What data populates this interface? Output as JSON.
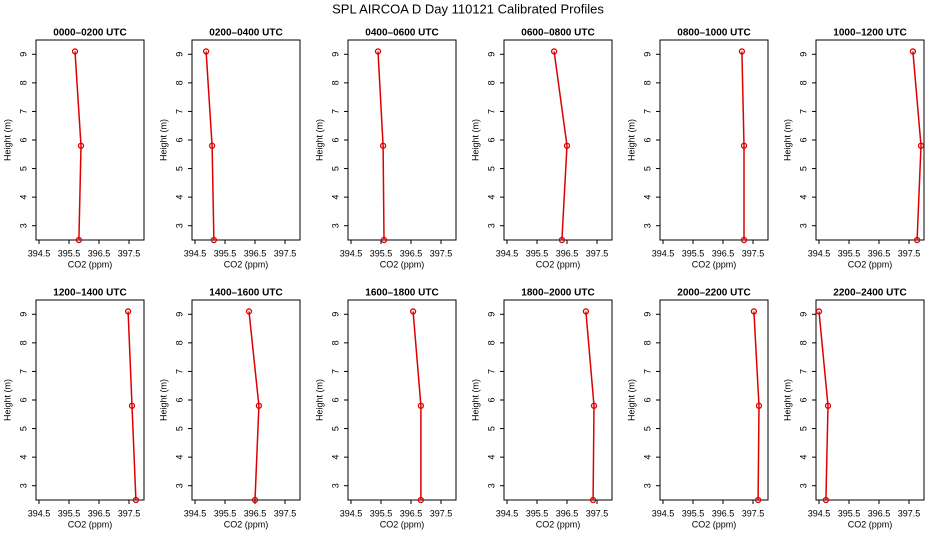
{
  "title": "SPL AIRCOA D  Day 110121  Calibrated Profiles",
  "chart_data": [
    {
      "type": "line",
      "title": "0000–0200 UTC",
      "x_label": "CO2 (ppm)",
      "y_label": "Height (m)",
      "color": "#dd0000",
      "x": [
        395.7,
        395.9,
        395.83
      ],
      "values": [
        9.1,
        5.8,
        2.5
      ],
      "xlim": [
        394.4,
        398.0
      ],
      "ylim": [
        2.5,
        9.5
      ],
      "xticks": [
        394.5,
        395.5,
        396.5,
        397.5
      ],
      "yticks": [
        3,
        4,
        5,
        6,
        7,
        8,
        9
      ]
    },
    {
      "type": "line",
      "title": "0200–0400 UTC",
      "x_label": "CO2 (ppm)",
      "y_label": "Height (m)",
      "color": "#dd0000",
      "x": [
        394.87,
        395.07,
        395.13
      ],
      "values": [
        9.1,
        5.8,
        2.5
      ],
      "xlim": [
        394.4,
        398.0
      ],
      "ylim": [
        2.5,
        9.5
      ],
      "xticks": [
        394.5,
        395.5,
        396.5,
        397.5
      ],
      "yticks": [
        3,
        4,
        5,
        6,
        7,
        8,
        9
      ]
    },
    {
      "type": "line",
      "title": "0400–0600 UTC",
      "x_label": "CO2 (ppm)",
      "y_label": "Height (m)",
      "color": "#dd0000",
      "x": [
        395.4,
        395.57,
        395.6
      ],
      "values": [
        9.1,
        5.8,
        2.5
      ],
      "xlim": [
        394.4,
        398.0
      ],
      "ylim": [
        2.5,
        9.5
      ],
      "xticks": [
        394.5,
        395.5,
        396.5,
        397.5
      ],
      "yticks": [
        3,
        4,
        5,
        6,
        7,
        8,
        9
      ]
    },
    {
      "type": "line",
      "title": "0600–0800 UTC",
      "x_label": "CO2 (ppm)",
      "y_label": "Height (m)",
      "color": "#dd0000",
      "x": [
        396.07,
        396.5,
        396.33
      ],
      "values": [
        9.1,
        5.8,
        2.5
      ],
      "xlim": [
        394.4,
        398.0
      ],
      "ylim": [
        2.5,
        9.5
      ],
      "xticks": [
        394.5,
        395.5,
        396.5,
        397.5
      ],
      "yticks": [
        3,
        4,
        5,
        6,
        7,
        8,
        9
      ]
    },
    {
      "type": "line",
      "title": "0800–1000 UTC",
      "x_label": "CO2 (ppm)",
      "y_label": "Height (m)",
      "color": "#dd0000",
      "x": [
        397.13,
        397.2,
        397.2
      ],
      "values": [
        9.1,
        5.8,
        2.5
      ],
      "xlim": [
        394.4,
        398.0
      ],
      "ylim": [
        2.5,
        9.5
      ],
      "xticks": [
        394.5,
        395.5,
        396.5,
        397.5
      ],
      "yticks": [
        3,
        4,
        5,
        6,
        7,
        8,
        9
      ]
    },
    {
      "type": "line",
      "title": "1000–1200 UTC",
      "x_label": "CO2 (ppm)",
      "y_label": "Height (m)",
      "color": "#dd0000",
      "x": [
        397.63,
        397.9,
        397.77
      ],
      "values": [
        9.1,
        5.8,
        2.5
      ],
      "xlim": [
        394.4,
        398.0
      ],
      "ylim": [
        2.5,
        9.5
      ],
      "xticks": [
        394.5,
        395.5,
        396.5,
        397.5
      ],
      "yticks": [
        3,
        4,
        5,
        6,
        7,
        8,
        9
      ]
    },
    {
      "type": "line",
      "title": "1200–1400 UTC",
      "x_label": "CO2 (ppm)",
      "y_label": "Height (m)",
      "color": "#dd0000",
      "x": [
        397.47,
        397.6,
        397.73
      ],
      "values": [
        9.1,
        5.8,
        2.5
      ],
      "xlim": [
        394.4,
        398.0
      ],
      "ylim": [
        2.5,
        9.5
      ],
      "xticks": [
        394.5,
        395.5,
        396.5,
        397.5
      ],
      "yticks": [
        3,
        4,
        5,
        6,
        7,
        8,
        9
      ]
    },
    {
      "type": "line",
      "title": "1400–1600 UTC",
      "x_label": "CO2 (ppm)",
      "y_label": "Height (m)",
      "color": "#dd0000",
      "x": [
        396.3,
        396.63,
        396.5
      ],
      "values": [
        9.1,
        5.8,
        2.5
      ],
      "xlim": [
        394.4,
        398.0
      ],
      "ylim": [
        2.5,
        9.5
      ],
      "xticks": [
        394.5,
        395.5,
        396.5,
        397.5
      ],
      "yticks": [
        3,
        4,
        5,
        6,
        7,
        8,
        9
      ]
    },
    {
      "type": "line",
      "title": "1600–1800 UTC",
      "x_label": "CO2 (ppm)",
      "y_label": "Height (m)",
      "color": "#dd0000",
      "x": [
        396.57,
        396.83,
        396.83
      ],
      "values": [
        9.1,
        5.8,
        2.5
      ],
      "xlim": [
        394.4,
        398.0
      ],
      "ylim": [
        2.5,
        9.5
      ],
      "xticks": [
        394.5,
        395.5,
        396.5,
        397.5
      ],
      "yticks": [
        3,
        4,
        5,
        6,
        7,
        8,
        9
      ]
    },
    {
      "type": "line",
      "title": "1800–2000 UTC",
      "x_label": "CO2 (ppm)",
      "y_label": "Height (m)",
      "color": "#dd0000",
      "x": [
        397.13,
        397.4,
        397.37
      ],
      "values": [
        9.1,
        5.8,
        2.5
      ],
      "xlim": [
        394.4,
        398.0
      ],
      "ylim": [
        2.5,
        9.5
      ],
      "xticks": [
        394.5,
        395.5,
        396.5,
        397.5
      ],
      "yticks": [
        3,
        4,
        5,
        6,
        7,
        8,
        9
      ]
    },
    {
      "type": "line",
      "title": "2000–2200 UTC",
      "x_label": "CO2 (ppm)",
      "y_label": "Height (m)",
      "color": "#dd0000",
      "x": [
        397.53,
        397.7,
        397.67
      ],
      "values": [
        9.1,
        5.8,
        2.5
      ],
      "xlim": [
        394.4,
        398.0
      ],
      "ylim": [
        2.5,
        9.5
      ],
      "xticks": [
        394.5,
        395.5,
        396.5,
        397.5
      ],
      "yticks": [
        3,
        4,
        5,
        6,
        7,
        8,
        9
      ]
    },
    {
      "type": "line",
      "title": "2200–2400 UTC",
      "x_label": "CO2 (ppm)",
      "y_label": "Height (m)",
      "color": "#dd0000",
      "x": [
        394.5,
        394.8,
        394.73
      ],
      "values": [
        9.1,
        5.8,
        2.5
      ],
      "xlim": [
        394.4,
        398.0
      ],
      "ylim": [
        2.5,
        9.5
      ],
      "xticks": [
        394.5,
        395.5,
        396.5,
        397.5
      ],
      "yticks": [
        3,
        4,
        5,
        6,
        7,
        8,
        9
      ]
    }
  ]
}
